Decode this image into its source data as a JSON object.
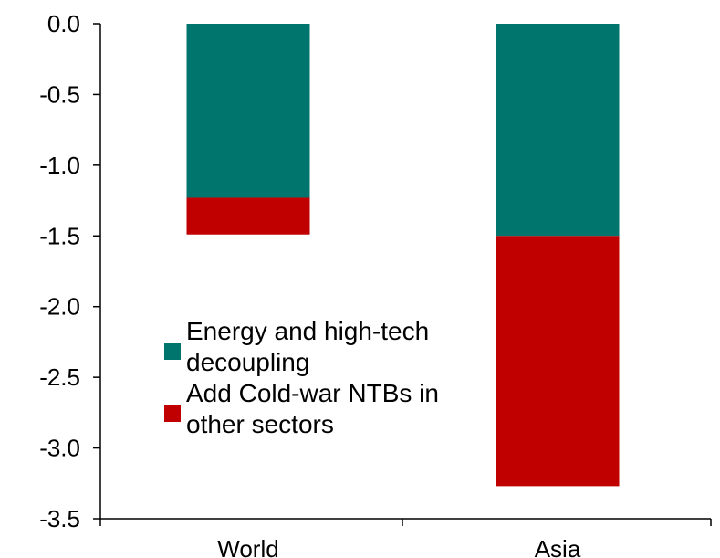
{
  "chart_data": {
    "type": "bar",
    "stacked": true,
    "title": "",
    "xlabel": "",
    "ylabel": "",
    "categories": [
      "World",
      "Asia"
    ],
    "ylim": [
      -3.5,
      0.0
    ],
    "yticks": [
      "0.0",
      "-0.5",
      "-1.0",
      "-1.5",
      "-2.0",
      "-2.5",
      "-3.0",
      "-3.5"
    ],
    "grid": false,
    "legend_position": "center-left",
    "series": [
      {
        "name": "Energy and high-tech decoupling",
        "color": "#00756e",
        "values": [
          -1.23,
          -1.5
        ]
      },
      {
        "name": "Add Cold-war NTBs in other sectors",
        "color": "#c00000",
        "values": [
          -0.26,
          -1.77
        ]
      }
    ]
  }
}
